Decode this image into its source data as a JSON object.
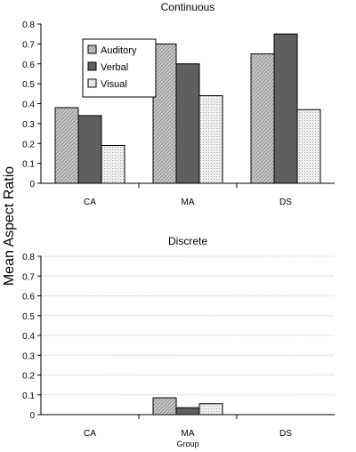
{
  "shared_ylabel": "Mean Aspect Ratio",
  "chart_data": [
    {
      "type": "bar",
      "title": "Continuous",
      "xlabel": "",
      "ylabel": "Mean Aspect Ratio",
      "categories": [
        "CA",
        "MA",
        "DS"
      ],
      "ylim": [
        0,
        0.8
      ],
      "yticks": [
        "0",
        "0.1",
        "0.2",
        "0.3",
        "0.4",
        "0.5",
        "0.6",
        "0.7",
        "0.8"
      ],
      "grid": false,
      "legend_position": "top-left",
      "series": [
        {
          "name": "Auditory",
          "values": [
            0.38,
            0.7,
            0.65
          ],
          "color": "#c8c8c8",
          "pattern": "diagonal-hatch"
        },
        {
          "name": "Verbal",
          "values": [
            0.34,
            0.6,
            0.75
          ],
          "color": "#5f5f5f",
          "pattern": "solid"
        },
        {
          "name": "Visual",
          "values": [
            0.19,
            0.44,
            0.37
          ],
          "color": "#f4f4f4",
          "pattern": "dots"
        }
      ]
    },
    {
      "type": "bar",
      "title": "Discrete",
      "xlabel": "Group",
      "ylabel": "Mean Aspect Ratio",
      "categories": [
        "CA",
        "MA",
        "DS"
      ],
      "ylim": [
        0,
        0.8
      ],
      "yticks": [
        "0",
        "0.1",
        "0.2",
        "0.3",
        "0.4",
        "0.5",
        "0.6",
        "0.7",
        "0.8"
      ],
      "grid": true,
      "legend_position": "none",
      "series": [
        {
          "values": [
            0.0,
            0.085,
            0.0
          ],
          "color": "#c8c8c8",
          "pattern": "diagonal-hatch"
        },
        {
          "values": [
            0.0,
            0.035,
            0.0
          ],
          "color": "#5f5f5f",
          "pattern": "solid"
        },
        {
          "values": [
            0.0,
            0.055,
            0.0
          ],
          "color": "#f4f4f4",
          "pattern": "dots"
        }
      ]
    }
  ]
}
